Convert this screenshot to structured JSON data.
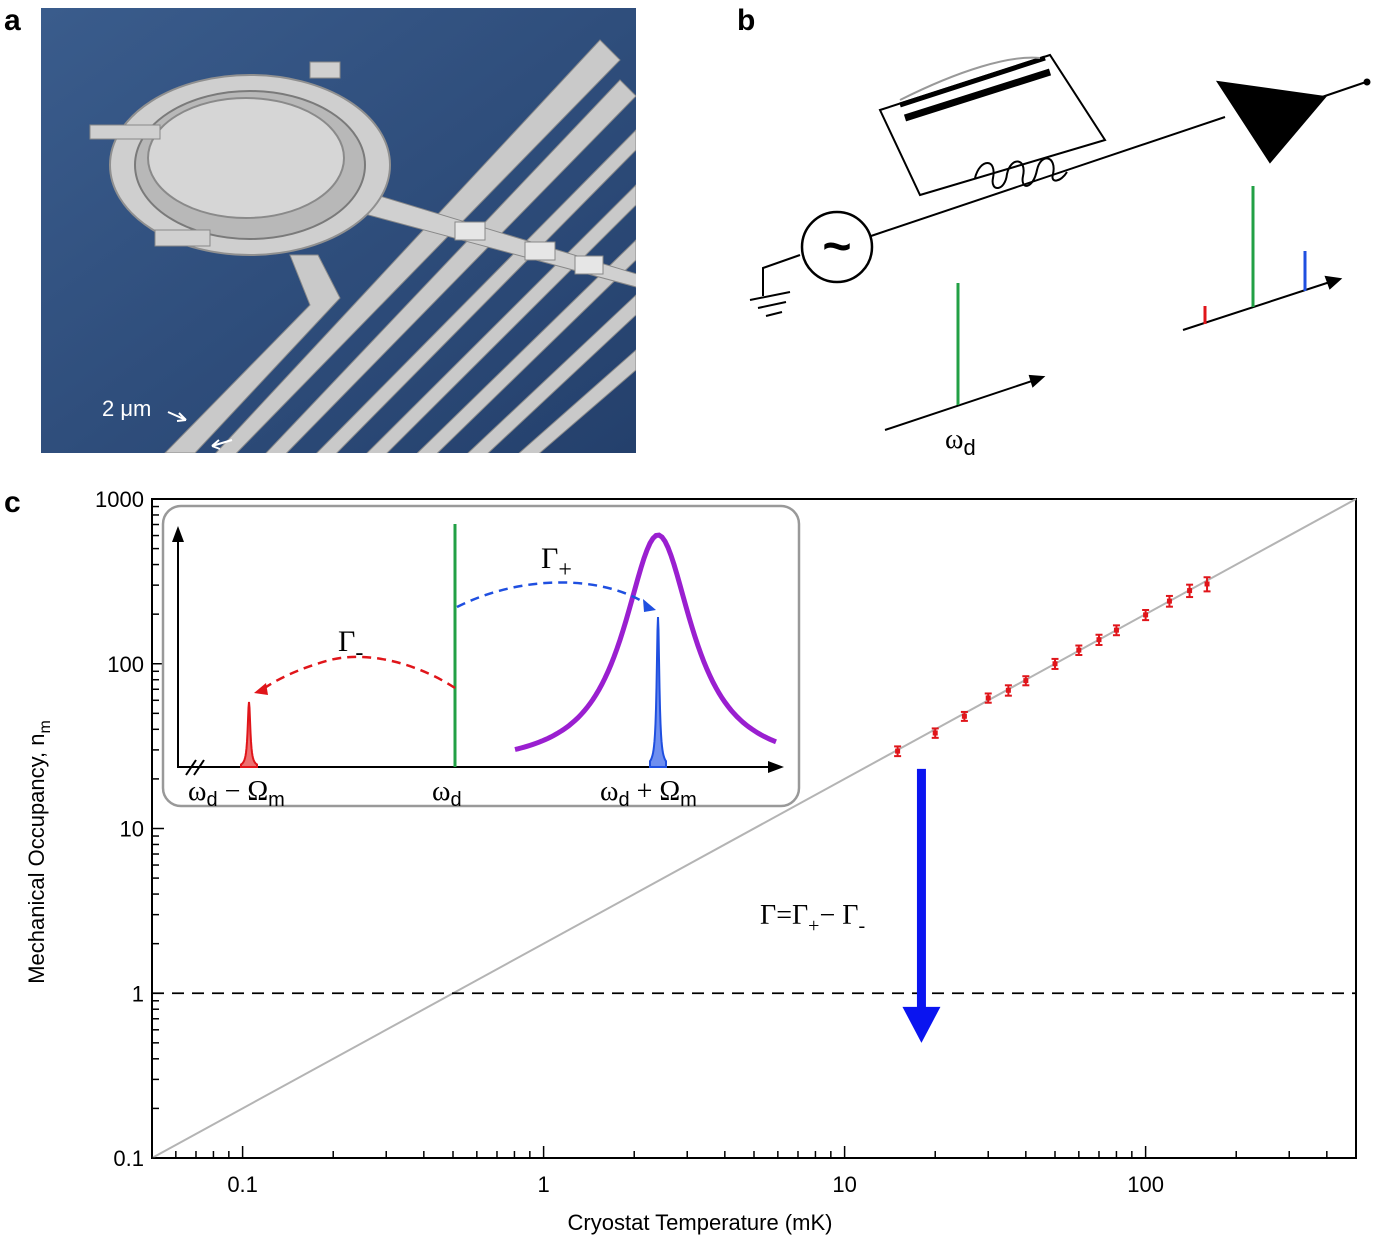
{
  "panels": {
    "a": "a",
    "b": "b",
    "c": "c"
  },
  "micrograph": {
    "scale_text": "2 μm",
    "background": "#2f4f7e"
  },
  "circuit": {
    "source_symbol": "~",
    "drive_label_base": "ω",
    "drive_label_sub": "d",
    "tone_colors": {
      "drive": "#22a045",
      "red": "#e0151a",
      "blue": "#1f4fe0"
    }
  },
  "inset": {
    "gamma_plus_base": "Γ",
    "gamma_plus_sub": "+",
    "gamma_minus_base": "Γ",
    "gamma_minus_sub": "-",
    "left_label": {
      "a": "ω",
      "b": "d",
      "c": " − Ω",
      "d": "m"
    },
    "mid_label": {
      "a": "ω",
      "b": "d"
    },
    "right_label": {
      "a": "ω",
      "b": "d",
      "c": " + Ω",
      "d": "m"
    },
    "colors": {
      "cavity": "#9a1fd0",
      "red": "#e0151a",
      "blue": "#1f4fe0",
      "drive": "#22a045"
    }
  },
  "arrow_label": {
    "a": "Γ=Γ",
    "b": "+",
    "c": "− Γ",
    "d": "-"
  },
  "chart_data": {
    "type": "scatter",
    "xlabel": "Cryostat Temperature (mK)",
    "ylabel_main": "Mechanical Occupancy, n",
    "ylabel_sub": "m",
    "xscale": "log",
    "yscale": "log",
    "xlim": [
      0.05,
      500
    ],
    "ylim": [
      0.1,
      1000
    ],
    "x_ticks": [
      0.1,
      1,
      10,
      100
    ],
    "x_tick_labels": [
      "0.1",
      "1",
      "10",
      "100"
    ],
    "y_ticks": [
      0.1,
      1,
      10,
      100,
      1000
    ],
    "y_tick_labels": [
      "0.1",
      "1",
      "10",
      "100",
      "1000"
    ],
    "points": [
      {
        "x": 15,
        "y": 29.5,
        "err": 2.0
      },
      {
        "x": 20,
        "y": 38,
        "err": 2.5
      },
      {
        "x": 25,
        "y": 48,
        "err": 3
      },
      {
        "x": 30,
        "y": 62,
        "err": 4
      },
      {
        "x": 35,
        "y": 69,
        "err": 5
      },
      {
        "x": 40,
        "y": 79,
        "err": 5
      },
      {
        "x": 50,
        "y": 100,
        "err": 7
      },
      {
        "x": 60,
        "y": 121,
        "err": 8
      },
      {
        "x": 70,
        "y": 140,
        "err": 10
      },
      {
        "x": 80,
        "y": 160,
        "err": 11
      },
      {
        "x": 100,
        "y": 198,
        "err": 14
      },
      {
        "x": 120,
        "y": 240,
        "err": 18
      },
      {
        "x": 140,
        "y": 278,
        "err": 24
      },
      {
        "x": 160,
        "y": 305,
        "err": 30
      }
    ],
    "theory_line": {
      "x": [
        0.05,
        500
      ],
      "y": [
        0.1,
        1000
      ]
    },
    "ground_state_line": {
      "y": 1
    },
    "cooling_arrow": {
      "x": 18,
      "y_from": 23,
      "y_to": 0.5
    },
    "colors": {
      "points": "#e0151a",
      "theory": "#b4b4b4",
      "arrow": "#0a14f0"
    }
  }
}
